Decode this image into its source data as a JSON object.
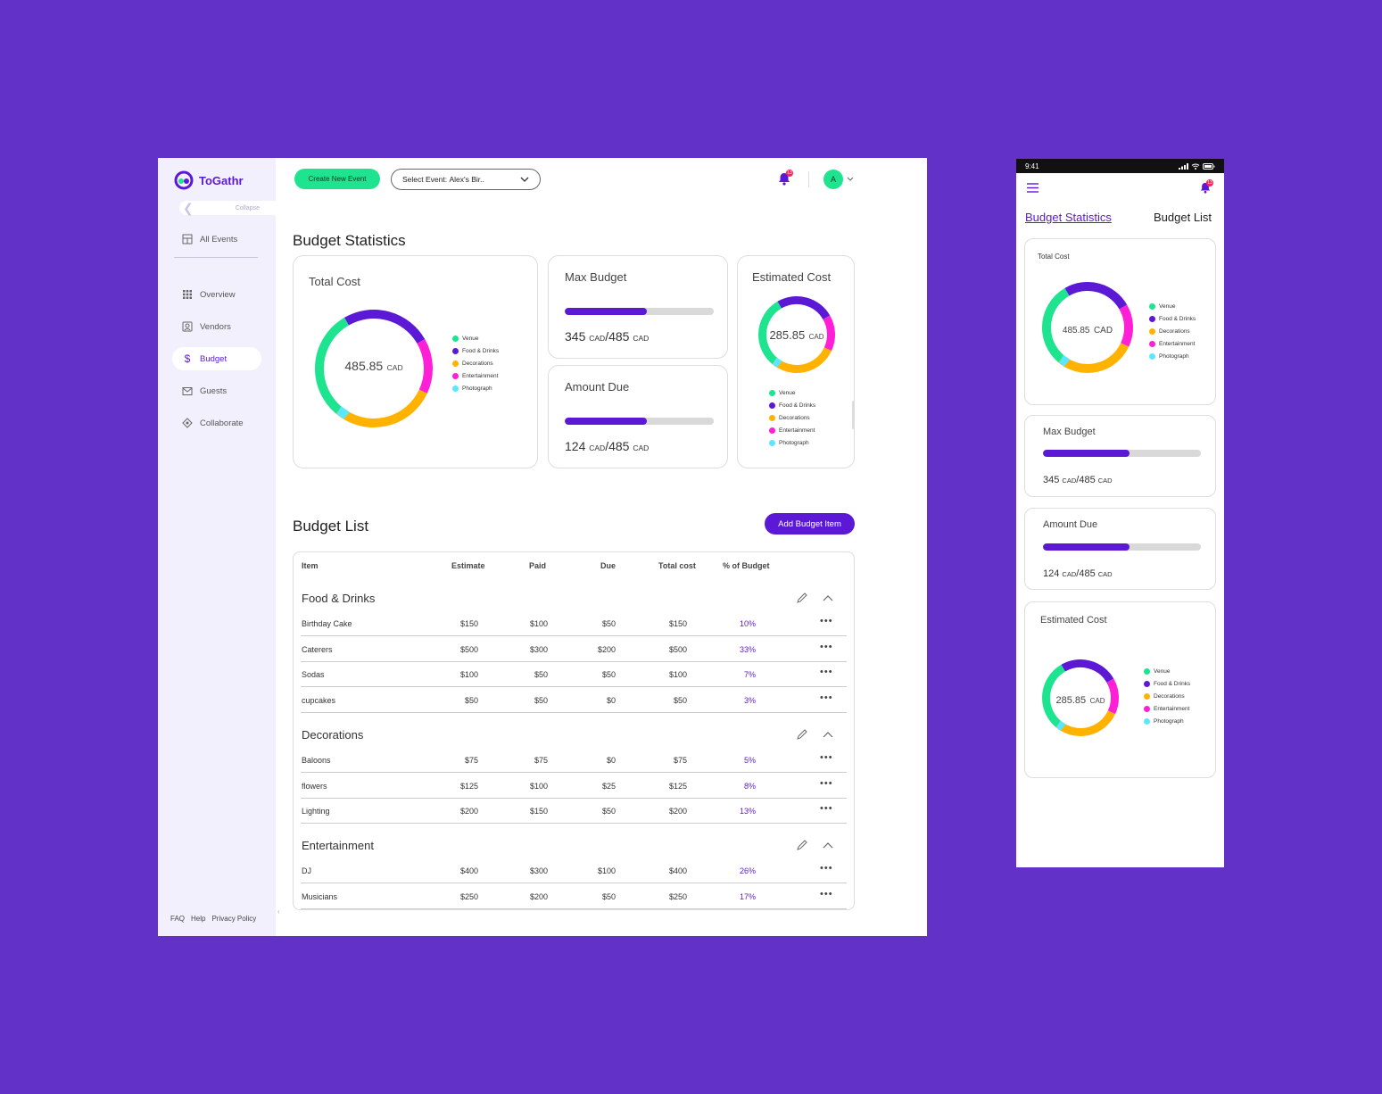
{
  "app": {
    "name": "ToGathr"
  },
  "sidebar": {
    "collapse_label": "Collapse",
    "all_events": "All Events",
    "items": [
      {
        "label": "Overview",
        "icon": "grid-icon"
      },
      {
        "label": "Vendors",
        "icon": "vendor-icon"
      },
      {
        "label": "Budget",
        "icon": "dollar-icon"
      },
      {
        "label": "Guests",
        "icon": "envelope-icon"
      },
      {
        "label": "Collaborate",
        "icon": "collaborate-icon"
      }
    ],
    "active": "Budget",
    "footer": {
      "faq": "FAQ",
      "help": "Help",
      "privacy": "Privacy Policy"
    }
  },
  "topbar": {
    "create_event": "Create New Event",
    "select_label": "Select Event:",
    "select_value": "Alex's Bir..",
    "notification_count": "13",
    "avatar_initial": "A"
  },
  "stats": {
    "title": "Budget Statistics",
    "total_cost": {
      "title": "Total Cost",
      "value": "485.85",
      "unit": "CAD"
    },
    "max_budget": {
      "title": "Max Budget",
      "current": "345",
      "max": "485",
      "unit": "CAD",
      "fraction": 0.55
    },
    "amount_due": {
      "title": "Amount Due",
      "current": "124",
      "max": "485",
      "unit": "CAD",
      "fraction": 0.55
    },
    "estimated_cost": {
      "title": "Estimated Cost",
      "value": "285.85",
      "unit": "CAD"
    },
    "legend": [
      "Venue",
      "Food & Drinks",
      "Decorations",
      "Entertainment",
      "Photograph"
    ],
    "colors": [
      "#1ee38f",
      "#5b19d6",
      "#ffb300",
      "#ff1fd6",
      "#5ce6ff"
    ]
  },
  "list": {
    "title": "Budget List",
    "add_button": "Add Budget Item",
    "headers": {
      "item": "Item",
      "estimate": "Estimate",
      "paid": "Paid",
      "due": "Due",
      "total": "Total cost",
      "pct": "% of Budget"
    },
    "groups": [
      {
        "name": "Food & Drinks",
        "rows": [
          [
            "Birthday Cake",
            "$150",
            "$100",
            "$50",
            "$150",
            "10%"
          ],
          [
            "Caterers",
            "$500",
            "$300",
            "$200",
            "$500",
            "33%"
          ],
          [
            "Sodas",
            "$100",
            "$50",
            "$50",
            "$100",
            "7%"
          ],
          [
            "cupcakes",
            "$50",
            "$50",
            "$0",
            "$50",
            "3%"
          ]
        ]
      },
      {
        "name": "Decorations",
        "rows": [
          [
            "Baloons",
            "$75",
            "$75",
            "$0",
            "$75",
            "5%"
          ],
          [
            "flowers",
            "$125",
            "$100",
            "$25",
            "$125",
            "8%"
          ],
          [
            "Lighting",
            "$200",
            "$150",
            "$50",
            "$200",
            "13%"
          ]
        ]
      },
      {
        "name": "Entertainment",
        "rows": [
          [
            "DJ",
            "$400",
            "$300",
            "$100",
            "$400",
            "26%"
          ],
          [
            "Musicians",
            "$250",
            "$200",
            "$50",
            "$250",
            "17%"
          ]
        ]
      }
    ]
  },
  "mobile": {
    "time": "9:41",
    "tab_stats": "Budget Statistics",
    "tab_list": "Budget List"
  }
}
